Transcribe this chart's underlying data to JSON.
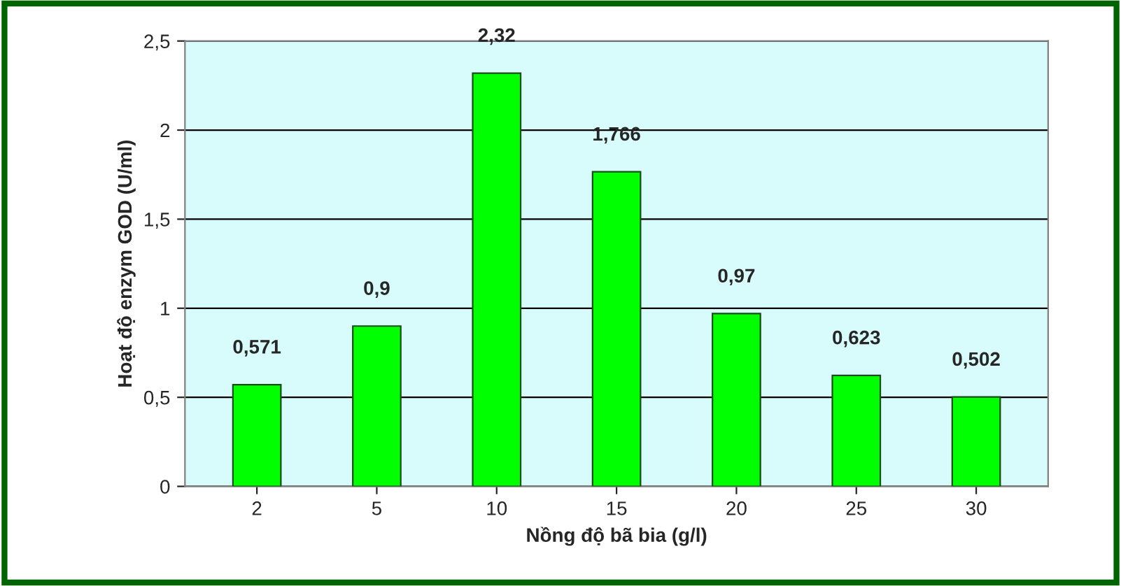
{
  "chart_data": {
    "type": "bar",
    "xlabel": "Nồng độ bã bia (g/l)",
    "ylabel": "Hoạt độ enzym GOD (U/ml)",
    "categories": [
      "2",
      "5",
      "10",
      "15",
      "20",
      "25",
      "30"
    ],
    "values": [
      0.571,
      0.9,
      2.32,
      1.766,
      0.97,
      0.623,
      0.502
    ],
    "value_labels": [
      "0,571",
      "0,9",
      "2,32",
      "1,766",
      "0,97",
      "0,623",
      "0,502"
    ],
    "color": "#00ff00",
    "ylim": [
      0,
      2.5
    ],
    "yticks": [
      0,
      {
        "value": 0.5,
        "label": "0,5"
      },
      1,
      {
        "value": 1.5,
        "label": "1,5"
      },
      2,
      {
        "value": 2.5,
        "label": "2,5"
      }
    ],
    "grid": "y"
  }
}
